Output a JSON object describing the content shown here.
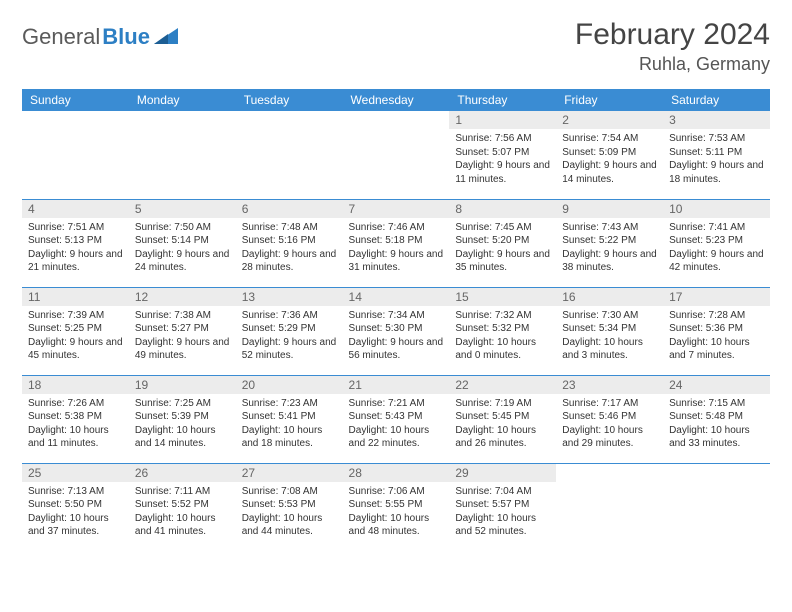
{
  "brand": {
    "general": "General",
    "blue": "Blue"
  },
  "title": {
    "month": "February 2024",
    "location": "Ruhla, Germany"
  },
  "colors": {
    "header_bg": "#3a8cd3",
    "row_divider": "#3a8cd3",
    "daynum_bg": "#ececec",
    "brand_blue": "#2d7fc4"
  },
  "weekdays": [
    "Sunday",
    "Monday",
    "Tuesday",
    "Wednesday",
    "Thursday",
    "Friday",
    "Saturday"
  ],
  "layout": {
    "columns": 7,
    "first_weekday_index": 4,
    "days_in_month": 29
  },
  "days": [
    {
      "n": 1,
      "sunrise": "7:56 AM",
      "sunset": "5:07 PM",
      "daylight": "9 hours and 11 minutes."
    },
    {
      "n": 2,
      "sunrise": "7:54 AM",
      "sunset": "5:09 PM",
      "daylight": "9 hours and 14 minutes."
    },
    {
      "n": 3,
      "sunrise": "7:53 AM",
      "sunset": "5:11 PM",
      "daylight": "9 hours and 18 minutes."
    },
    {
      "n": 4,
      "sunrise": "7:51 AM",
      "sunset": "5:13 PM",
      "daylight": "9 hours and 21 minutes."
    },
    {
      "n": 5,
      "sunrise": "7:50 AM",
      "sunset": "5:14 PM",
      "daylight": "9 hours and 24 minutes."
    },
    {
      "n": 6,
      "sunrise": "7:48 AM",
      "sunset": "5:16 PM",
      "daylight": "9 hours and 28 minutes."
    },
    {
      "n": 7,
      "sunrise": "7:46 AM",
      "sunset": "5:18 PM",
      "daylight": "9 hours and 31 minutes."
    },
    {
      "n": 8,
      "sunrise": "7:45 AM",
      "sunset": "5:20 PM",
      "daylight": "9 hours and 35 minutes."
    },
    {
      "n": 9,
      "sunrise": "7:43 AM",
      "sunset": "5:22 PM",
      "daylight": "9 hours and 38 minutes."
    },
    {
      "n": 10,
      "sunrise": "7:41 AM",
      "sunset": "5:23 PM",
      "daylight": "9 hours and 42 minutes."
    },
    {
      "n": 11,
      "sunrise": "7:39 AM",
      "sunset": "5:25 PM",
      "daylight": "9 hours and 45 minutes."
    },
    {
      "n": 12,
      "sunrise": "7:38 AM",
      "sunset": "5:27 PM",
      "daylight": "9 hours and 49 minutes."
    },
    {
      "n": 13,
      "sunrise": "7:36 AM",
      "sunset": "5:29 PM",
      "daylight": "9 hours and 52 minutes."
    },
    {
      "n": 14,
      "sunrise": "7:34 AM",
      "sunset": "5:30 PM",
      "daylight": "9 hours and 56 minutes."
    },
    {
      "n": 15,
      "sunrise": "7:32 AM",
      "sunset": "5:32 PM",
      "daylight": "10 hours and 0 minutes."
    },
    {
      "n": 16,
      "sunrise": "7:30 AM",
      "sunset": "5:34 PM",
      "daylight": "10 hours and 3 minutes."
    },
    {
      "n": 17,
      "sunrise": "7:28 AM",
      "sunset": "5:36 PM",
      "daylight": "10 hours and 7 minutes."
    },
    {
      "n": 18,
      "sunrise": "7:26 AM",
      "sunset": "5:38 PM",
      "daylight": "10 hours and 11 minutes."
    },
    {
      "n": 19,
      "sunrise": "7:25 AM",
      "sunset": "5:39 PM",
      "daylight": "10 hours and 14 minutes."
    },
    {
      "n": 20,
      "sunrise": "7:23 AM",
      "sunset": "5:41 PM",
      "daylight": "10 hours and 18 minutes."
    },
    {
      "n": 21,
      "sunrise": "7:21 AM",
      "sunset": "5:43 PM",
      "daylight": "10 hours and 22 minutes."
    },
    {
      "n": 22,
      "sunrise": "7:19 AM",
      "sunset": "5:45 PM",
      "daylight": "10 hours and 26 minutes."
    },
    {
      "n": 23,
      "sunrise": "7:17 AM",
      "sunset": "5:46 PM",
      "daylight": "10 hours and 29 minutes."
    },
    {
      "n": 24,
      "sunrise": "7:15 AM",
      "sunset": "5:48 PM",
      "daylight": "10 hours and 33 minutes."
    },
    {
      "n": 25,
      "sunrise": "7:13 AM",
      "sunset": "5:50 PM",
      "daylight": "10 hours and 37 minutes."
    },
    {
      "n": 26,
      "sunrise": "7:11 AM",
      "sunset": "5:52 PM",
      "daylight": "10 hours and 41 minutes."
    },
    {
      "n": 27,
      "sunrise": "7:08 AM",
      "sunset": "5:53 PM",
      "daylight": "10 hours and 44 minutes."
    },
    {
      "n": 28,
      "sunrise": "7:06 AM",
      "sunset": "5:55 PM",
      "daylight": "10 hours and 48 minutes."
    },
    {
      "n": 29,
      "sunrise": "7:04 AM",
      "sunset": "5:57 PM",
      "daylight": "10 hours and 52 minutes."
    }
  ],
  "labels": {
    "sunrise": "Sunrise:",
    "sunset": "Sunset:",
    "daylight": "Daylight:"
  }
}
